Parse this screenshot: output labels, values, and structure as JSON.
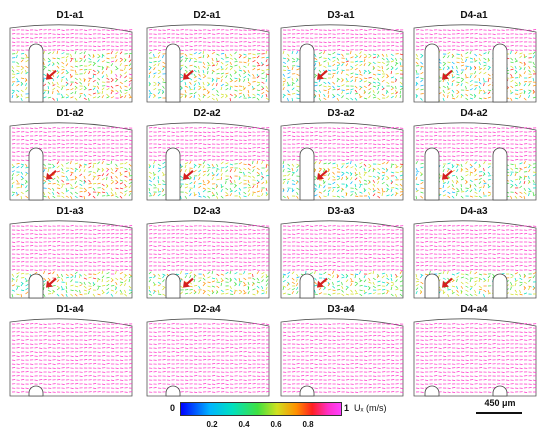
{
  "panels": [
    {
      "id": "D1-a1",
      "row": 0,
      "col": 0,
      "slots": 1
    },
    {
      "id": "D2-a1",
      "row": 0,
      "col": 1,
      "slots": 1
    },
    {
      "id": "D3-a1",
      "row": 0,
      "col": 2,
      "slots": 1
    },
    {
      "id": "D4-a1",
      "row": 0,
      "col": 3,
      "slots": 2
    },
    {
      "id": "D1-a2",
      "row": 1,
      "col": 0,
      "slots": 1
    },
    {
      "id": "D2-a2",
      "row": 1,
      "col": 1,
      "slots": 1
    },
    {
      "id": "D3-a2",
      "row": 1,
      "col": 2,
      "slots": 1
    },
    {
      "id": "D4-a2",
      "row": 1,
      "col": 3,
      "slots": 2
    },
    {
      "id": "D1-a3",
      "row": 2,
      "col": 0,
      "slots": 1
    },
    {
      "id": "D2-a3",
      "row": 2,
      "col": 1,
      "slots": 1
    },
    {
      "id": "D3-a3",
      "row": 2,
      "col": 2,
      "slots": 1
    },
    {
      "id": "D4-a3",
      "row": 2,
      "col": 3,
      "slots": 2
    },
    {
      "id": "D1-a4",
      "row": 3,
      "col": 0,
      "slots": 1
    },
    {
      "id": "D2-a4",
      "row": 3,
      "col": 1,
      "slots": 1
    },
    {
      "id": "D3-a4",
      "row": 3,
      "col": 2,
      "slots": 1
    },
    {
      "id": "D4-a4",
      "row": 3,
      "col": 3,
      "slots": 2
    }
  ],
  "colorbar": {
    "min_label": "0",
    "max_label": "1",
    "quantity_label": "Uₓ (m/s)",
    "ticks": [
      "0.2",
      "0.4",
      "0.6",
      "0.8"
    ],
    "tick_values": [
      0.2,
      0.4,
      0.6,
      0.8
    ],
    "colors": [
      "#0000ff",
      "#00b4ff",
      "#00e0c0",
      "#40e040",
      "#d0e020",
      "#ff9000",
      "#ff2020",
      "#ff30c8",
      "#ff40ff"
    ]
  },
  "scale_bar": {
    "label": "450 μm"
  },
  "arrow_color": "#d42020",
  "vector_base_color": "#c040e0"
}
